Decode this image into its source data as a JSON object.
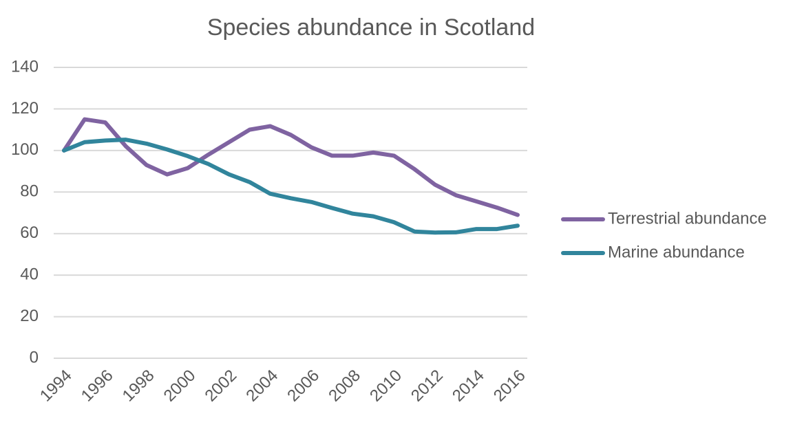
{
  "chart_data": {
    "type": "line",
    "title": "Species abundance in Scotland",
    "x": [
      1994,
      1995,
      1996,
      1997,
      1998,
      1999,
      2000,
      2001,
      2002,
      2003,
      2004,
      2005,
      2006,
      2007,
      2008,
      2009,
      2010,
      2011,
      2012,
      2013,
      2014,
      2015,
      2016
    ],
    "series": [
      {
        "name": "Terrestrial abundance",
        "color": "#7f63a1",
        "values": [
          100,
          115,
          113.5,
          102,
          93,
          88.5,
          91.5,
          98,
          104,
          110,
          111.7,
          107.5,
          101.5,
          97.5,
          97.5,
          99,
          97.5,
          91,
          83.5,
          78.5,
          75.5,
          72.5,
          69
        ]
      },
      {
        "name": "Marine abundance",
        "color": "#31859c",
        "values": [
          100,
          104,
          104.8,
          105.2,
          103.3,
          100.5,
          97.3,
          93.5,
          88.5,
          84.8,
          79.2,
          77,
          75.2,
          72.3,
          69.6,
          68.3,
          65.5,
          61,
          60.5,
          60.6,
          62.2,
          62.2,
          63.8
        ]
      }
    ],
    "xlim": [
      1994,
      2016
    ],
    "xticks": [
      1994,
      1996,
      1998,
      2000,
      2002,
      2004,
      2006,
      2008,
      2010,
      2012,
      2014,
      2016
    ],
    "ylim": [
      0,
      140
    ],
    "yticks": [
      0,
      20,
      40,
      60,
      80,
      100,
      120,
      140
    ],
    "grid": true,
    "legend": "right"
  }
}
